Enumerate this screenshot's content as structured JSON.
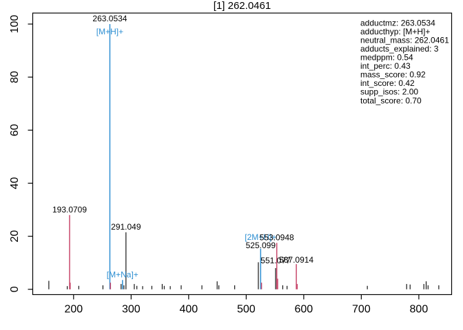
{
  "chart_data": {
    "type": "stem-mass-spectrum",
    "title": "[1] 262.0461",
    "xlabel": "",
    "ylabel": "",
    "xlim": [
      129,
      857
    ],
    "ylim": [
      0,
      100
    ],
    "grid": false,
    "x_ticks": [
      200,
      300,
      400,
      500,
      600,
      700,
      800
    ],
    "y_ticks": [
      0,
      20,
      40,
      60,
      80,
      100
    ],
    "colors": {
      "peak_black": "#000000",
      "adduct_blue": "#2E8FD2",
      "isotope_red": "#C8476B",
      "axis": "#000000",
      "background": "#ffffff"
    },
    "peaks": [
      {
        "mz": 157.0,
        "i": 3.2,
        "c": "k"
      },
      {
        "mz": 189.0,
        "i": 1.2,
        "c": "k"
      },
      {
        "mz": 193.0709,
        "i": 28.0,
        "c": "r"
      },
      {
        "mz": 194.1,
        "i": 2.5,
        "c": "r"
      },
      {
        "mz": 209.0,
        "i": 1.3,
        "c": "k"
      },
      {
        "mz": 251.0,
        "i": 1.5,
        "c": "k"
      },
      {
        "mz": 263.0534,
        "i": 100.0,
        "c": "b"
      },
      {
        "mz": 264.06,
        "i": 2.5,
        "c": "r"
      },
      {
        "mz": 282.6,
        "i": 2.0,
        "c": "k"
      },
      {
        "mz": 285.03,
        "i": 3.5,
        "c": "b"
      },
      {
        "mz": 287.5,
        "i": 1.5,
        "c": "k"
      },
      {
        "mz": 291.049,
        "i": 21.5,
        "c": "k"
      },
      {
        "mz": 305.5,
        "i": 2.0,
        "c": "k"
      },
      {
        "mz": 310.0,
        "i": 1.3,
        "c": "k"
      },
      {
        "mz": 320.0,
        "i": 1.2,
        "c": "k"
      },
      {
        "mz": 336.0,
        "i": 1.3,
        "c": "k"
      },
      {
        "mz": 354.0,
        "i": 2.0,
        "c": "k"
      },
      {
        "mz": 357.5,
        "i": 1.3,
        "c": "k"
      },
      {
        "mz": 368.0,
        "i": 1.2,
        "c": "k"
      },
      {
        "mz": 387.0,
        "i": 1.5,
        "c": "k"
      },
      {
        "mz": 423.0,
        "i": 1.5,
        "c": "k"
      },
      {
        "mz": 449.5,
        "i": 3.0,
        "c": "k"
      },
      {
        "mz": 452.5,
        "i": 1.5,
        "c": "k"
      },
      {
        "mz": 480.0,
        "i": 1.5,
        "c": "k"
      },
      {
        "mz": 521.1,
        "i": 10.2,
        "c": "k"
      },
      {
        "mz": 525.099,
        "i": 15.3,
        "c": "b"
      },
      {
        "mz": 526.6,
        "i": 2.5,
        "c": "r"
      },
      {
        "mz": 551.077,
        "i": 8.0,
        "c": "k"
      },
      {
        "mz": 553.0948,
        "i": 17.5,
        "c": "r"
      },
      {
        "mz": 554.6,
        "i": 4.0,
        "c": "r"
      },
      {
        "mz": 563.5,
        "i": 1.5,
        "c": "k"
      },
      {
        "mz": 571.0,
        "i": 1.3,
        "c": "k"
      },
      {
        "mz": 587.0914,
        "i": 9.5,
        "c": "r"
      },
      {
        "mz": 588.6,
        "i": 2.0,
        "c": "r"
      },
      {
        "mz": 710.5,
        "i": 1.3,
        "c": "k"
      },
      {
        "mz": 778.8,
        "i": 2.0,
        "c": "k"
      },
      {
        "mz": 784.8,
        "i": 1.8,
        "c": "k"
      },
      {
        "mz": 808.7,
        "i": 2.0,
        "c": "k"
      },
      {
        "mz": 812.7,
        "i": 3.0,
        "c": "k"
      },
      {
        "mz": 816.0,
        "i": 1.5,
        "c": "k"
      },
      {
        "mz": 834.7,
        "i": 1.5,
        "c": "k"
      }
    ],
    "annotations": [
      {
        "text": "263.0534",
        "mz": 263.0534,
        "iy": 100.0,
        "dy": -4,
        "c": "k"
      },
      {
        "text": "[M+H]+",
        "mz": 263.0534,
        "iy": 100.0,
        "dy": 15,
        "c": "b"
      },
      {
        "text": "193.0709",
        "mz": 193.0709,
        "iy": 28.0,
        "dy": -4,
        "c": "k"
      },
      {
        "text": "291.049",
        "mz": 291.049,
        "iy": 21.5,
        "dy": -4,
        "c": "k"
      },
      {
        "text": "[M+Na]+",
        "mz": 285.03,
        "iy": 3.5,
        "dy": -4,
        "c": "b"
      },
      {
        "text": "[2M+H]+",
        "mz": 525.099,
        "iy": 15.3,
        "dy": -13,
        "c": "b"
      },
      {
        "text": "553.0948",
        "mz": 553.0948,
        "iy": 17.5,
        "dy": -4,
        "c": "k"
      },
      {
        "text": "525.099",
        "mz": 525.099,
        "iy": 15.3,
        "dy": -1,
        "c": "k"
      },
      {
        "text": "551.077",
        "mz": 551.077,
        "iy": 8.0,
        "dy": -7,
        "c": "k"
      },
      {
        "text": "587.0914",
        "mz": 587.0914,
        "iy": 9.5,
        "dy": -2,
        "c": "k"
      }
    ],
    "stats_box": [
      "adductmz: 263.0534",
      "adducthyp: [M+H]+",
      "neutral_mass: 262.0461",
      "adducts_explained: 3",
      "medppm: 0.54",
      "int_perc: 0.43",
      "mass_score: 0.92",
      "int_score: 0.42",
      "supp_isos: 2.00",
      "total_score: 0.70"
    ]
  }
}
